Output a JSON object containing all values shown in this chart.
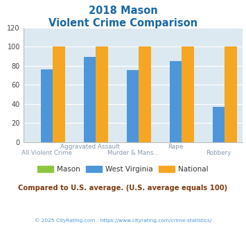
{
  "title_line1": "2018 Mason",
  "title_line2": "Violent Crime Comparison",
  "categories": [
    "All Violent Crime",
    "Aggravated Assault",
    "Murder & Mans...",
    "Rape",
    "Robbery"
  ],
  "mason_values": [
    0,
    0,
    0,
    0,
    0
  ],
  "wv_values": [
    76,
    89,
    75,
    85,
    37
  ],
  "national_values": [
    100,
    100,
    100,
    100,
    100
  ],
  "mason_color": "#8dc63f",
  "wv_color": "#4d96d9",
  "national_color": "#f5a623",
  "bg_color": "#dce9f0",
  "title_color": "#1a69a4",
  "xlabel_color": "#8899aa",
  "legend_text_color": "#333333",
  "subtitle_text": "Compared to U.S. average. (U.S. average equals 100)",
  "subtitle_color": "#7b3a10",
  "footer_text": "© 2025 CityRating.com - https://www.cityrating.com/crime-statistics/",
  "footer_color": "#4d96d9",
  "ylim": [
    0,
    120
  ],
  "yticks": [
    0,
    20,
    40,
    60,
    80,
    100,
    120
  ],
  "bar_width": 0.28,
  "legend_labels": [
    "Mason",
    "West Virginia",
    "National"
  ],
  "top_row_labels": [
    [
      1,
      "Aggravated Assault"
    ],
    [
      3,
      "Rape"
    ]
  ],
  "bot_row_labels": [
    [
      0,
      "All Violent Crime"
    ],
    [
      2,
      "Murder & Mans..."
    ],
    [
      4,
      "Robbery"
    ]
  ]
}
